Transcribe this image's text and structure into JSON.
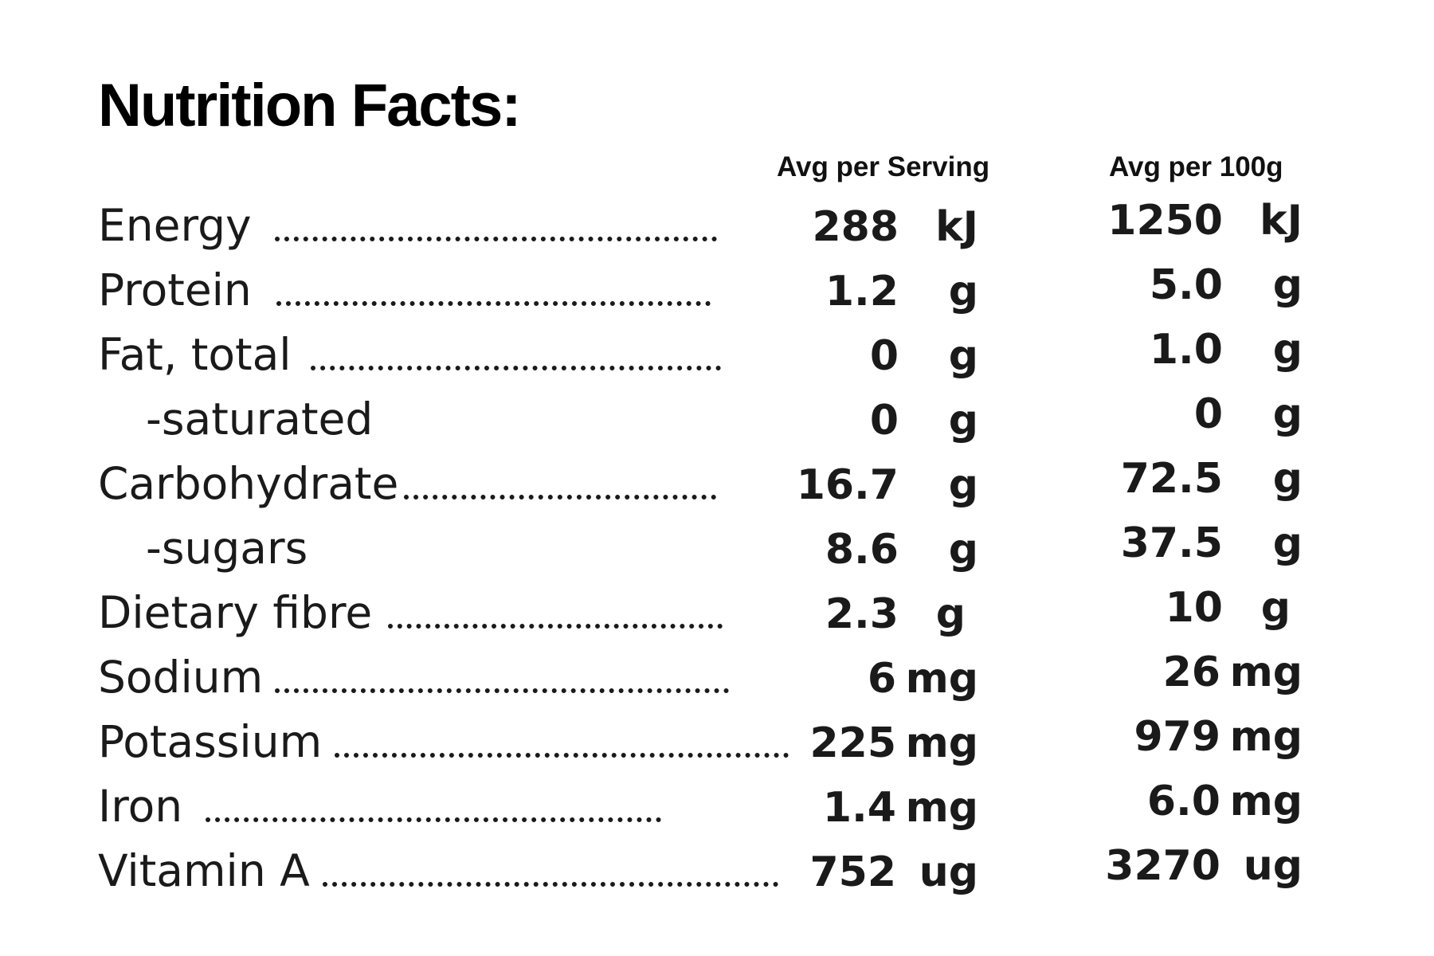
{
  "title": "Nutrition Facts:",
  "columns": {
    "serving": "Avg per Serving",
    "per100": "Avg per 100g"
  },
  "rows": [
    {
      "label": "Energy",
      "serving": "288",
      "serving_unit": "kJ",
      "per100": "1250",
      "per100_unit": "kJ"
    },
    {
      "label": "Protein",
      "serving": "1.2",
      "serving_unit": "g",
      "per100": "5.0",
      "per100_unit": "g"
    },
    {
      "label": "Fat, total",
      "serving": "0",
      "serving_unit": "g",
      "per100": "1.0",
      "per100_unit": "g"
    },
    {
      "label": "-saturated",
      "serving": "0",
      "serving_unit": "g",
      "per100": "0",
      "per100_unit": "g"
    },
    {
      "label": "Carbohydrate",
      "serving": "16.7",
      "serving_unit": "g",
      "per100": "72.5",
      "per100_unit": "g"
    },
    {
      "label": "-sugars",
      "serving": "8.6",
      "serving_unit": "g",
      "per100": "37.5",
      "per100_unit": "g"
    },
    {
      "label": "Dietary fibre",
      "serving": "2.3",
      "serving_unit": "g",
      "per100": "10",
      "per100_unit": "g"
    },
    {
      "label": "Sodium",
      "serving": "6",
      "serving_unit": "mg",
      "per100": "26",
      "per100_unit": "mg"
    },
    {
      "label": "Potassium",
      "serving": "225",
      "serving_unit": "mg",
      "per100": "979",
      "per100_unit": "mg"
    },
    {
      "label": "Iron",
      "serving": "1.4",
      "serving_unit": "mg",
      "per100": "6.0",
      "per100_unit": "mg"
    },
    {
      "label": "Vitamin A",
      "serving": "752",
      "serving_unit": "ug",
      "per100": "3270",
      "per100_unit": "ug"
    }
  ]
}
